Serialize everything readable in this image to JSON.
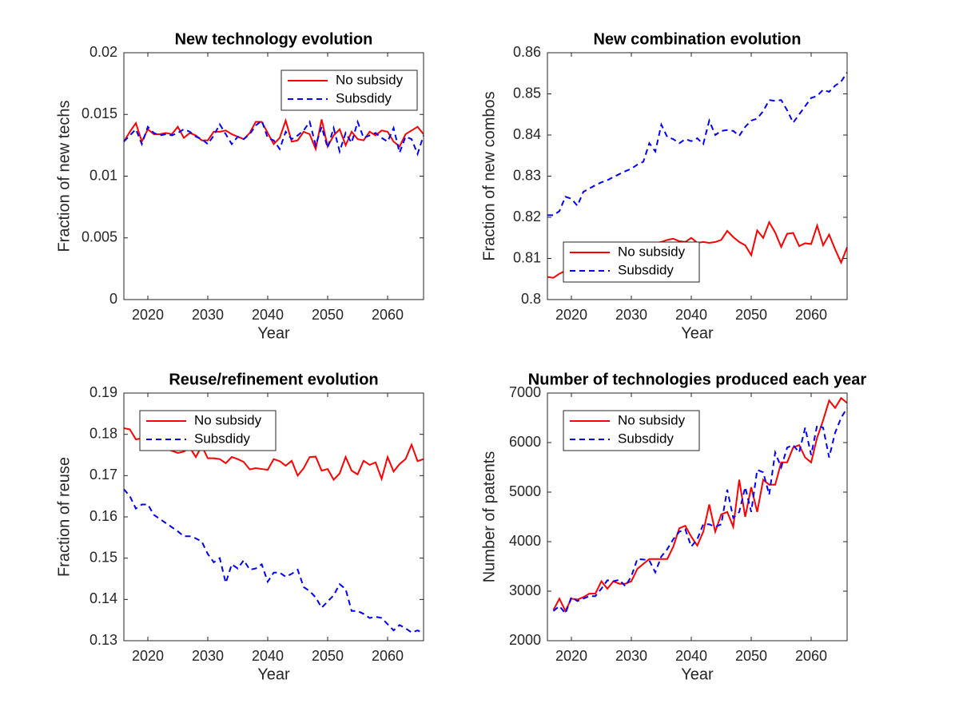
{
  "chart_data": [
    {
      "type": "line",
      "title": "New technology evolution",
      "xlabel": "Year",
      "ylabel": "Fraction of new techs",
      "x": [
        2016,
        2017,
        2018,
        2019,
        2020,
        2021,
        2022,
        2023,
        2024,
        2025,
        2026,
        2027,
        2028,
        2029,
        2030,
        2031,
        2032,
        2033,
        2034,
        2035,
        2036,
        2037,
        2038,
        2039,
        2040,
        2041,
        2042,
        2043,
        2044,
        2045,
        2046,
        2047,
        2048,
        2049,
        2050,
        2051,
        2052,
        2053,
        2054,
        2055,
        2056,
        2057,
        2058,
        2059,
        2060,
        2061,
        2062,
        2063,
        2064,
        2065,
        2066
      ],
      "xlim": [
        2016,
        2066
      ],
      "xticks": [
        2020,
        2030,
        2040,
        2050,
        2060
      ],
      "ylim": [
        0,
        0.02
      ],
      "yticks": [
        0,
        0.005,
        0.01,
        0.015,
        0.02
      ],
      "legend": "northeast",
      "series": [
        {
          "name": "No subsidy",
          "color": "#ff0000",
          "linestyle": "solid",
          "values": [
            0.0128,
            0.0136,
            0.0143,
            0.0128,
            0.0138,
            0.0134,
            0.0134,
            0.0135,
            0.0134,
            0.014,
            0.0131,
            0.0135,
            0.0133,
            0.0129,
            0.0129,
            0.0136,
            0.0136,
            0.0137,
            0.0134,
            0.0132,
            0.013,
            0.0135,
            0.0144,
            0.0144,
            0.0135,
            0.0126,
            0.0131,
            0.0145,
            0.0128,
            0.0129,
            0.0136,
            0.0134,
            0.0122,
            0.0146,
            0.0124,
            0.0133,
            0.0138,
            0.0125,
            0.0136,
            0.013,
            0.0129,
            0.0136,
            0.0133,
            0.0137,
            0.0136,
            0.0128,
            0.0124,
            0.0134,
            0.0137,
            0.014,
            0.0134
          ]
        },
        {
          "name": "Subsdidy",
          "color": "#0000ff",
          "linestyle": "dashed",
          "values": [
            0.0128,
            0.0133,
            0.0138,
            0.0126,
            0.014,
            0.0135,
            0.0133,
            0.0134,
            0.0133,
            0.0135,
            0.0138,
            0.0136,
            0.0132,
            0.013,
            0.0126,
            0.0133,
            0.0142,
            0.0134,
            0.0126,
            0.0132,
            0.013,
            0.0134,
            0.0141,
            0.0145,
            0.0131,
            0.0129,
            0.0122,
            0.0136,
            0.013,
            0.0133,
            0.0137,
            0.0144,
            0.0125,
            0.014,
            0.0123,
            0.0139,
            0.012,
            0.0135,
            0.0127,
            0.0144,
            0.0131,
            0.0133,
            0.0135,
            0.0131,
            0.0128,
            0.0139,
            0.0119,
            0.0132,
            0.013,
            0.0118,
            0.0133
          ]
        }
      ]
    },
    {
      "type": "line",
      "title": "New combination evolution",
      "xlabel": "Year",
      "ylabel": "Fraction of new combos",
      "x": [
        2016,
        2017,
        2018,
        2019,
        2020,
        2021,
        2022,
        2023,
        2024,
        2025,
        2026,
        2027,
        2028,
        2029,
        2030,
        2031,
        2032,
        2033,
        2034,
        2035,
        2036,
        2037,
        2038,
        2039,
        2040,
        2041,
        2042,
        2043,
        2044,
        2045,
        2046,
        2047,
        2048,
        2049,
        2050,
        2051,
        2052,
        2053,
        2054,
        2055,
        2056,
        2057,
        2058,
        2059,
        2060,
        2061,
        2062,
        2063,
        2064,
        2065,
        2066
      ],
      "xlim": [
        2016,
        2066
      ],
      "xticks": [
        2020,
        2030,
        2040,
        2050,
        2060
      ],
      "ylim": [
        0.8,
        0.86
      ],
      "yticks": [
        0.8,
        0.81,
        0.82,
        0.83,
        0.84,
        0.85,
        0.86
      ],
      "legend": "southwest",
      "series": [
        {
          "name": "No subsidy",
          "color": "#ff0000",
          "linestyle": "solid",
          "values": [
            0.8055,
            0.8053,
            0.8063,
            0.807,
            0.8078,
            0.8085,
            0.8092,
            0.8098,
            0.8105,
            0.811,
            0.8115,
            0.8118,
            0.8122,
            0.8125,
            0.8128,
            0.813,
            0.8133,
            0.8135,
            0.8138,
            0.814,
            0.8145,
            0.8148,
            0.8142,
            0.814,
            0.815,
            0.8138,
            0.814,
            0.8138,
            0.814,
            0.8145,
            0.8167,
            0.8152,
            0.814,
            0.8132,
            0.8108,
            0.8168,
            0.815,
            0.8188,
            0.8163,
            0.8128,
            0.816,
            0.8162,
            0.813,
            0.8137,
            0.8135,
            0.818,
            0.8132,
            0.8158,
            0.8122,
            0.809,
            0.8127
          ]
        },
        {
          "name": "Subsdidy",
          "color": "#0000ff",
          "linestyle": "dashed",
          "values": [
            0.8205,
            0.8205,
            0.8215,
            0.825,
            0.8245,
            0.8228,
            0.8262,
            0.827,
            0.8278,
            0.8285,
            0.829,
            0.8298,
            0.8305,
            0.8312,
            0.8318,
            0.8328,
            0.8335,
            0.838,
            0.836,
            0.8425,
            0.8395,
            0.839,
            0.838,
            0.839,
            0.8385,
            0.8392,
            0.8378,
            0.8435,
            0.84,
            0.841,
            0.8412,
            0.841,
            0.8398,
            0.842,
            0.8435,
            0.844,
            0.8458,
            0.8485,
            0.8483,
            0.8485,
            0.846,
            0.843,
            0.845,
            0.847,
            0.849,
            0.8495,
            0.851,
            0.8505,
            0.852,
            0.853,
            0.8552
          ]
        }
      ]
    },
    {
      "type": "line",
      "title": "Reuse/refinement evolution",
      "xlabel": "Year",
      "ylabel": "Fraction of reuse",
      "x": [
        2016,
        2017,
        2018,
        2019,
        2020,
        2021,
        2022,
        2023,
        2024,
        2025,
        2026,
        2027,
        2028,
        2029,
        2030,
        2031,
        2032,
        2033,
        2034,
        2035,
        2036,
        2037,
        2038,
        2039,
        2040,
        2041,
        2042,
        2043,
        2044,
        2045,
        2046,
        2047,
        2048,
        2049,
        2050,
        2051,
        2052,
        2053,
        2054,
        2055,
        2056,
        2057,
        2058,
        2059,
        2060,
        2061,
        2062,
        2063,
        2064,
        2065,
        2066
      ],
      "xlim": [
        2016,
        2066
      ],
      "xticks": [
        2020,
        2030,
        2040,
        2050,
        2060
      ],
      "ylim": [
        0.13,
        0.19
      ],
      "yticks": [
        0.13,
        0.14,
        0.15,
        0.16,
        0.17,
        0.18,
        0.19
      ],
      "legend": "northwest",
      "series": [
        {
          "name": "No subsidy",
          "color": "#ff0000",
          "linestyle": "solid",
          "values": [
            0.1815,
            0.1812,
            0.1788,
            0.179,
            0.1785,
            0.1775,
            0.177,
            0.1765,
            0.176,
            0.1755,
            0.1758,
            0.1768,
            0.1745,
            0.1772,
            0.1742,
            0.1742,
            0.174,
            0.173,
            0.1745,
            0.174,
            0.1733,
            0.1715,
            0.1718,
            0.1716,
            0.1714,
            0.174,
            0.1735,
            0.1724,
            0.1736,
            0.17,
            0.1718,
            0.1745,
            0.1746,
            0.1712,
            0.1716,
            0.169,
            0.1705,
            0.1745,
            0.1712,
            0.1703,
            0.1736,
            0.1726,
            0.1732,
            0.1692,
            0.1745,
            0.171,
            0.1728,
            0.174,
            0.1775,
            0.1735,
            0.174
          ]
        },
        {
          "name": "Subsdidy",
          "color": "#0000ff",
          "linestyle": "dashed",
          "values": [
            0.1667,
            0.165,
            0.162,
            0.163,
            0.163,
            0.1605,
            0.1595,
            0.1585,
            0.1575,
            0.1565,
            0.1553,
            0.1553,
            0.1548,
            0.154,
            0.151,
            0.149,
            0.15,
            0.144,
            0.1485,
            0.1475,
            0.1495,
            0.1472,
            0.1475,
            0.1485,
            0.1443,
            0.1465,
            0.1465,
            0.1455,
            0.1462,
            0.1472,
            0.143,
            0.142,
            0.1405,
            0.138,
            0.1395,
            0.141,
            0.1437,
            0.1425,
            0.1372,
            0.1372,
            0.1365,
            0.1355,
            0.1358,
            0.1355,
            0.134,
            0.1325,
            0.1338,
            0.133,
            0.132,
            0.1325,
            0.1318
          ]
        }
      ]
    },
    {
      "type": "line",
      "title": "Number of technologies produced each year",
      "xlabel": "Year",
      "ylabel": "Number of patents",
      "x": [
        2017,
        2018,
        2019,
        2020,
        2021,
        2022,
        2023,
        2024,
        2025,
        2026,
        2027,
        2028,
        2029,
        2030,
        2031,
        2032,
        2033,
        2034,
        2035,
        2036,
        2037,
        2038,
        2039,
        2040,
        2041,
        2042,
        2043,
        2044,
        2045,
        2046,
        2047,
        2048,
        2049,
        2050,
        2051,
        2052,
        2053,
        2054,
        2055,
        2056,
        2057,
        2058,
        2059,
        2060,
        2061,
        2062,
        2063,
        2064,
        2065,
        2066
      ],
      "xlim": [
        2016,
        2066
      ],
      "xticks": [
        2020,
        2030,
        2040,
        2050,
        2060
      ],
      "ylim": [
        2000,
        7000
      ],
      "yticks": [
        2000,
        3000,
        4000,
        5000,
        6000,
        7000
      ],
      "legend": "northwest",
      "series": [
        {
          "name": "No subsidy",
          "color": "#ff0000",
          "linestyle": "solid",
          "values": [
            2620,
            2850,
            2600,
            2850,
            2830,
            2880,
            2950,
            2950,
            3200,
            3050,
            3200,
            3150,
            3150,
            3200,
            3450,
            3550,
            3650,
            3650,
            3650,
            3650,
            3900,
            4270,
            4320,
            4100,
            3920,
            4200,
            4750,
            4200,
            4550,
            4600,
            4300,
            5250,
            4500,
            5100,
            4600,
            5250,
            5150,
            5150,
            5600,
            5600,
            5900,
            5950,
            5700,
            5600,
            6100,
            6450,
            6850,
            6700,
            6900,
            6800
          ]
        },
        {
          "name": "Subsdidy",
          "color": "#0000ff",
          "linestyle": "dashed",
          "values": [
            2600,
            2700,
            2550,
            2880,
            2800,
            2850,
            2900,
            2900,
            3050,
            3220,
            3200,
            3230,
            3100,
            3300,
            3650,
            3640,
            3620,
            3380,
            3700,
            3850,
            4050,
            4200,
            4250,
            3900,
            4050,
            4350,
            4350,
            4300,
            4350,
            5050,
            4480,
            4600,
            5100,
            4600,
            5450,
            5400,
            4950,
            5800,
            5500,
            5900,
            5950,
            5800,
            6300,
            5750,
            6350,
            6300,
            5700,
            6200,
            6500,
            6700
          ]
        }
      ]
    }
  ]
}
